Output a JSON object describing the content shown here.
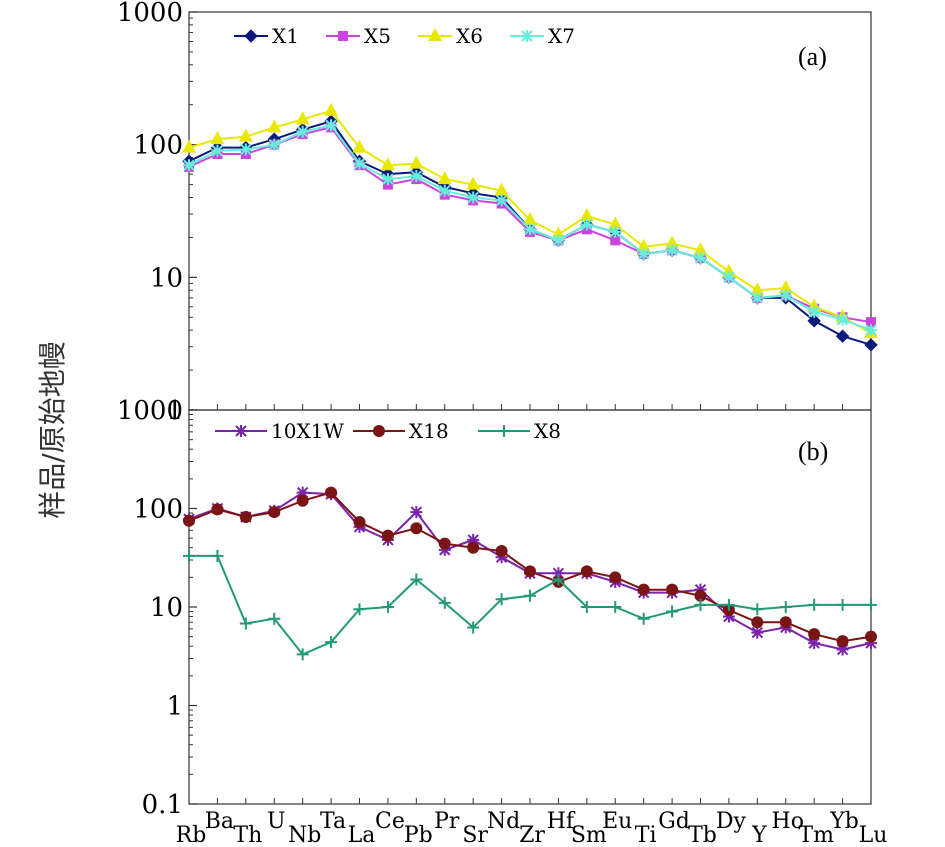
{
  "chart_data": [
    {
      "panel": "(a)",
      "type": "line",
      "yscale": "log",
      "ylim": [
        1,
        1000
      ],
      "yticks": [
        "1",
        "10",
        "100",
        "1000"
      ],
      "ylabel": "样品/原始地幔",
      "categories": [
        "Rb",
        "Ba",
        "Th",
        "U",
        "Nb",
        "Ta",
        "La",
        "Ce",
        "Pb",
        "Pr",
        "Sr",
        "Nd",
        "Zr",
        "Hf",
        "Sm",
        "Eu",
        "Ti",
        "Gd",
        "Tb",
        "Dy",
        "Y",
        "Ho",
        "Tm",
        "Yb",
        "Lu"
      ],
      "legend_position": "top-left",
      "series": [
        {
          "name": "X1",
          "color": "#0a1a7a",
          "marker": "diamond",
          "values": [
            75,
            95,
            95,
            110,
            130,
            150,
            75,
            60,
            62,
            48,
            43,
            40,
            23,
            19,
            25,
            22,
            15,
            16,
            14,
            10,
            7,
            7,
            4.7,
            3.6,
            3.1
          ]
        },
        {
          "name": "X5",
          "color": "#cc44dd",
          "marker": "square",
          "values": [
            68,
            85,
            85,
            100,
            120,
            135,
            70,
            50,
            55,
            42,
            38,
            36,
            22,
            19,
            23,
            19,
            15,
            16,
            14,
            10,
            7,
            7.3,
            5.8,
            5,
            4.6
          ]
        },
        {
          "name": "X6",
          "color": "#e8e800",
          "marker": "triangle",
          "values": [
            95,
            110,
            115,
            135,
            155,
            180,
            95,
            70,
            72,
            55,
            50,
            45,
            27,
            21,
            29,
            25,
            17,
            18,
            16,
            11,
            8,
            8.3,
            6,
            5,
            3.8
          ]
        },
        {
          "name": "X7",
          "color": "#66eedd",
          "marker": "asterisk",
          "values": [
            70,
            90,
            92,
            100,
            125,
            140,
            72,
            55,
            58,
            45,
            40,
            38,
            23,
            19,
            25,
            22,
            15,
            16,
            14,
            10,
            7,
            7.3,
            5.5,
            4.8,
            4
          ]
        }
      ]
    },
    {
      "panel": "(b)",
      "type": "line",
      "yscale": "log",
      "ylim": [
        0.1,
        1000
      ],
      "yticks": [
        "0.1",
        "1",
        "10",
        "100",
        "1000"
      ],
      "categories": [
        "Rb",
        "Ba",
        "Th",
        "U",
        "Nb",
        "Ta",
        "La",
        "Ce",
        "Pb",
        "Pr",
        "Sr",
        "Nd",
        "Zr",
        "Hf",
        "Sm",
        "Eu",
        "Ti",
        "Gd",
        "Tb",
        "Dy",
        "Y",
        "Ho",
        "Tm",
        "Yb",
        "Lu"
      ],
      "legend_position": "top-left",
      "series": [
        {
          "name": "10X1W",
          "color": "#7a22aa",
          "marker": "asterisk",
          "values": [
            78,
            100,
            82,
            95,
            145,
            140,
            65,
            48,
            92,
            38,
            48,
            32,
            22,
            22,
            22,
            18,
            14,
            14,
            15,
            8,
            5.5,
            6.2,
            4.3,
            3.7,
            4.3
          ]
        },
        {
          "name": "X18",
          "color": "#7a1515",
          "marker": "circle",
          "values": [
            75,
            98,
            82,
            92,
            120,
            145,
            73,
            53,
            63,
            44,
            40,
            37,
            23,
            18,
            23,
            20,
            15,
            15,
            13,
            9.3,
            7,
            7,
            5.3,
            4.5,
            5
          ]
        },
        {
          "name": "X8",
          "color": "#229977",
          "marker": "plus",
          "values": [
            33,
            33,
            6.8,
            7.6,
            3.3,
            4.4,
            9.5,
            10,
            19,
            11,
            6.2,
            12,
            13,
            19,
            10,
            10,
            7.6,
            9,
            10.5,
            10.5,
            9.5,
            10,
            10.5,
            10.5,
            10.5
          ]
        }
      ]
    }
  ]
}
